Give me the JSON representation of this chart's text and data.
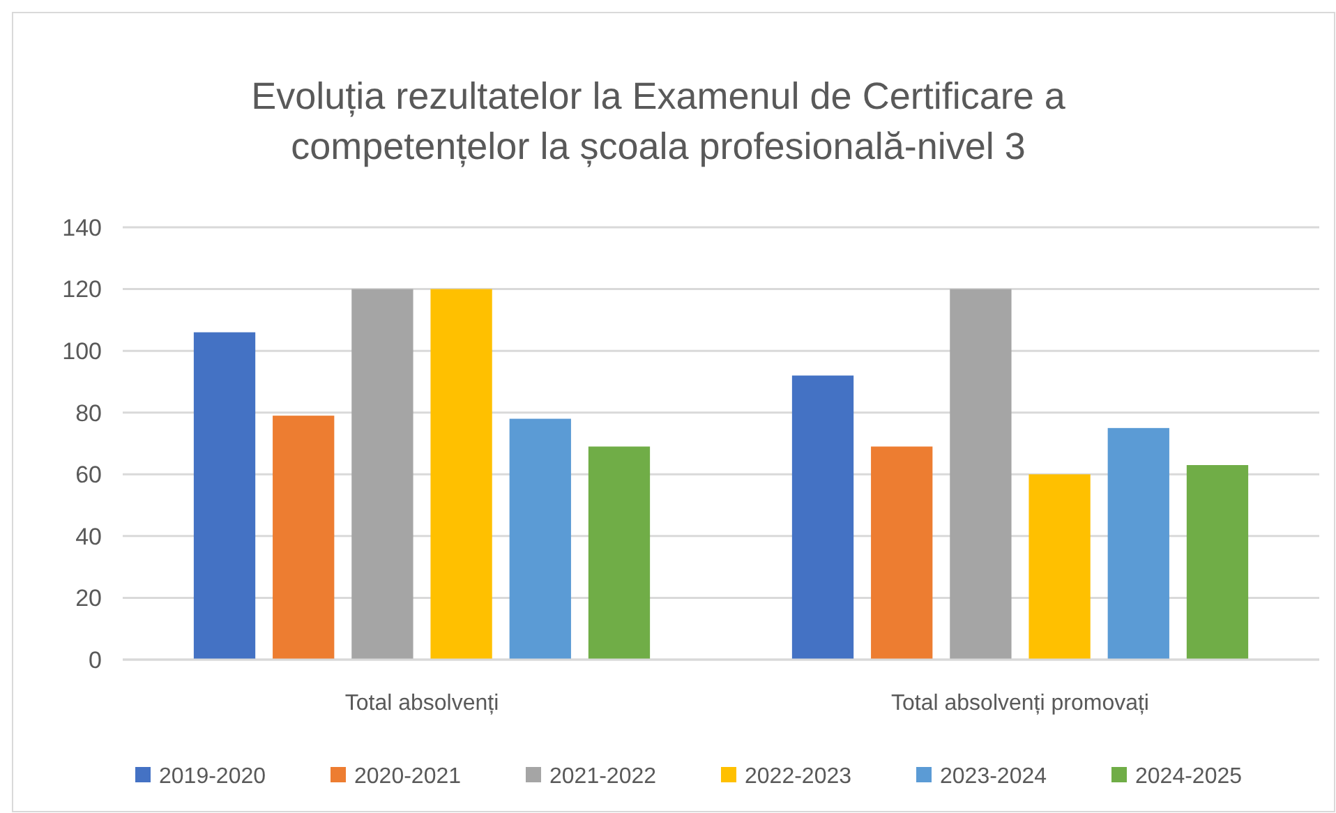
{
  "chart_data": {
    "type": "bar",
    "title": "Evoluția rezultatelor la Examenul de Certificare a competențelor la școala profesională-nivel 3",
    "categories": [
      "Total absolvenți",
      "Total absolvenți promovați"
    ],
    "series": [
      {
        "name": "2019-2020",
        "color": "#4472c4",
        "values": [
          106,
          92
        ]
      },
      {
        "name": "2020-2021",
        "color": "#ed7d31",
        "values": [
          79,
          69
        ]
      },
      {
        "name": "2021-2022",
        "color": "#a5a5a5",
        "values": [
          120,
          120
        ]
      },
      {
        "name": "2022-2023",
        "color": "#ffc000",
        "values": [
          120,
          60
        ]
      },
      {
        "name": "2023-2024",
        "color": "#5b9bd5",
        "values": [
          78,
          75
        ]
      },
      {
        "name": "2024-2025",
        "color": "#70ad47",
        "values": [
          69,
          63
        ]
      }
    ],
    "ylim": [
      0,
      140
    ],
    "yticks": [
      0,
      20,
      40,
      60,
      80,
      100,
      120,
      140
    ],
    "grid": "y",
    "legend": "bottom"
  }
}
